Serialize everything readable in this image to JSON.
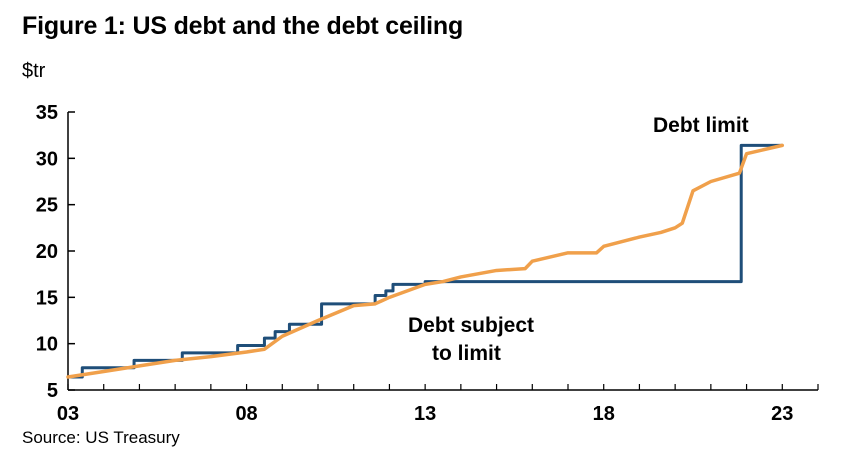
{
  "chart_data": {
    "type": "line",
    "title": "Figure 1: US debt and the debt ceiling",
    "ylabel": "$tr",
    "source": "Source: US Treasury",
    "xlim": [
      2003,
      2024.0
    ],
    "ylim": [
      5,
      35
    ],
    "x_ticks": [
      2003,
      2008,
      2013,
      2018,
      2023
    ],
    "x_tick_labels": [
      "03",
      "08",
      "13",
      "18",
      "23"
    ],
    "y_ticks": [
      5,
      10,
      15,
      20,
      25,
      30,
      35
    ],
    "grid": false,
    "series": [
      {
        "name": "Debt limit",
        "color": "#1f4e79",
        "step": true,
        "x": [
          2003.0,
          2003.4,
          2004.85,
          2006.2,
          2007.75,
          2008.5,
          2008.8,
          2009.2,
          2010.1,
          2011.6,
          2011.9,
          2012.1,
          2013.0,
          2021.85,
          2023.0
        ],
        "values": [
          6.4,
          7.4,
          8.2,
          9.0,
          9.8,
          10.6,
          11.3,
          12.1,
          14.3,
          15.2,
          15.7,
          16.4,
          16.7,
          31.4,
          31.4
        ]
      },
      {
        "name": "Debt subject to limit",
        "color": "#f0a04b",
        "step": false,
        "x": [
          2003.0,
          2004.0,
          2005.0,
          2006.0,
          2007.0,
          2008.0,
          2008.5,
          2009.0,
          2010.0,
          2011.0,
          2011.6,
          2012.0,
          2013.0,
          2013.5,
          2014.0,
          2015.0,
          2015.8,
          2016.0,
          2017.0,
          2017.8,
          2018.0,
          2019.0,
          2019.6,
          2020.0,
          2020.2,
          2020.5,
          2021.0,
          2021.8,
          2022.0,
          2023.0
        ],
        "values": [
          6.4,
          7.0,
          7.6,
          8.2,
          8.6,
          9.1,
          9.4,
          10.8,
          12.5,
          14.1,
          14.3,
          15.0,
          16.4,
          16.7,
          17.2,
          17.9,
          18.1,
          18.9,
          19.8,
          19.8,
          20.5,
          21.5,
          22.0,
          22.5,
          23.0,
          26.5,
          27.5,
          28.4,
          30.5,
          31.4
        ]
      }
    ],
    "annotations": {
      "debt_limit": "Debt limit",
      "subject_line1": "Debt subject",
      "subject_line2": "to limit"
    }
  }
}
